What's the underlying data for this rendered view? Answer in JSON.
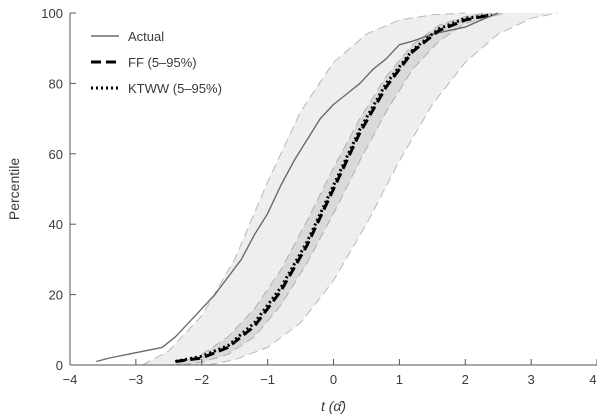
{
  "chart_data": {
    "type": "line",
    "xlabel": "t (α̂)",
    "ylabel": "Percentile",
    "xlim": [
      -4,
      4
    ],
    "ylim": [
      0,
      100
    ],
    "x_ticks": [
      "−4",
      "−3",
      "−2",
      "−1",
      "0",
      "1",
      "2",
      "3",
      "4"
    ],
    "y_ticks": [
      "0",
      "20",
      "40",
      "60",
      "80",
      "100"
    ],
    "grid": false,
    "legend_position": "top-left",
    "legend": [
      {
        "label": "Actual",
        "style": "solid"
      },
      {
        "label": "FF (5–95%)",
        "style": "dashed"
      },
      {
        "label": "KTWW (5–95%)",
        "style": "dotted"
      }
    ],
    "series": [
      {
        "name": "Actual",
        "style": "solid",
        "color": "#6a6a6a",
        "x": [
          -3.6,
          -3.4,
          -3.0,
          -2.6,
          -2.4,
          -2.2,
          -2.0,
          -1.8,
          -1.6,
          -1.4,
          -1.2,
          -1.0,
          -0.8,
          -0.6,
          -0.4,
          -0.2,
          0.0,
          0.2,
          0.4,
          0.6,
          0.8,
          1.0,
          1.2,
          1.5,
          2.0,
          2.3,
          2.5
        ],
        "y": [
          1,
          2,
          3.5,
          5,
          8,
          12,
          16,
          20,
          25,
          30,
          37,
          43,
          51,
          58,
          64,
          70,
          74,
          77,
          80,
          84,
          87,
          91,
          92,
          94,
          96,
          98.5,
          100
        ]
      },
      {
        "name": "FF (5–95%)",
        "style": "dashed",
        "color": "#000000",
        "x": [
          -2.4,
          -2.0,
          -1.6,
          -1.2,
          -0.8,
          -0.4,
          -0.2,
          0.0,
          0.2,
          0.4,
          0.8,
          1.2,
          1.6,
          2.0,
          2.4
        ],
        "y": [
          1,
          2,
          5,
          11,
          21,
          34,
          42,
          50,
          58,
          66,
          79,
          89,
          95,
          98,
          99.5
        ]
      },
      {
        "name": "KTWW (5–95%)",
        "style": "dotted",
        "color": "#000000",
        "x": [
          -2.4,
          -2.0,
          -1.6,
          -1.2,
          -0.8,
          -0.4,
          -0.2,
          0.0,
          0.2,
          0.4,
          0.8,
          1.2,
          1.6,
          2.0,
          2.4
        ],
        "y": [
          1,
          2.5,
          5.5,
          12,
          22,
          35,
          43,
          51,
          59,
          67,
          80,
          89.5,
          95.5,
          98.5,
          99.5
        ]
      }
    ],
    "bands": [
      {
        "name": "outer",
        "fill": "#eeeeee",
        "edge_color": "#b8b8b8",
        "lower": {
          "x": [
            -1.9,
            -1.5,
            -1.0,
            -0.5,
            0.0,
            0.5,
            1.0,
            1.5,
            2.0,
            2.5,
            3.0,
            3.4
          ],
          "y": [
            0,
            1.5,
            5,
            12,
            24,
            40,
            58,
            74,
            86,
            94,
            98.5,
            100
          ]
        },
        "upper": {
          "x": [
            -2.9,
            -2.5,
            -2.0,
            -1.5,
            -1.0,
            -0.5,
            0.0,
            0.5,
            1.0,
            1.5,
            2.0
          ],
          "y": [
            0,
            4,
            14,
            30,
            52,
            72,
            86,
            94,
            98,
            99.5,
            100
          ]
        }
      },
      {
        "name": "inner",
        "fill": "#d9d9d9",
        "edge_color": "#b0b0b0",
        "lower": {
          "x": [
            -2.3,
            -2.0,
            -1.6,
            -1.2,
            -0.8,
            -0.4,
            0.0,
            0.4,
            0.8,
            1.2,
            1.6,
            2.0,
            2.6
          ],
          "y": [
            0,
            0.8,
            3,
            8,
            17,
            29,
            43,
            58,
            72,
            84,
            92,
            97,
            100
          ]
        },
        "upper": {
          "x": [
            -2.4,
            -2.0,
            -1.6,
            -1.2,
            -0.8,
            -0.4,
            0.0,
            0.4,
            0.8,
            1.2,
            1.6,
            2.0,
            2.3
          ],
          "y": [
            0,
            3,
            8,
            16,
            27,
            41,
            56,
            70,
            82,
            91,
            96.5,
            99,
            100
          ]
        }
      }
    ]
  }
}
